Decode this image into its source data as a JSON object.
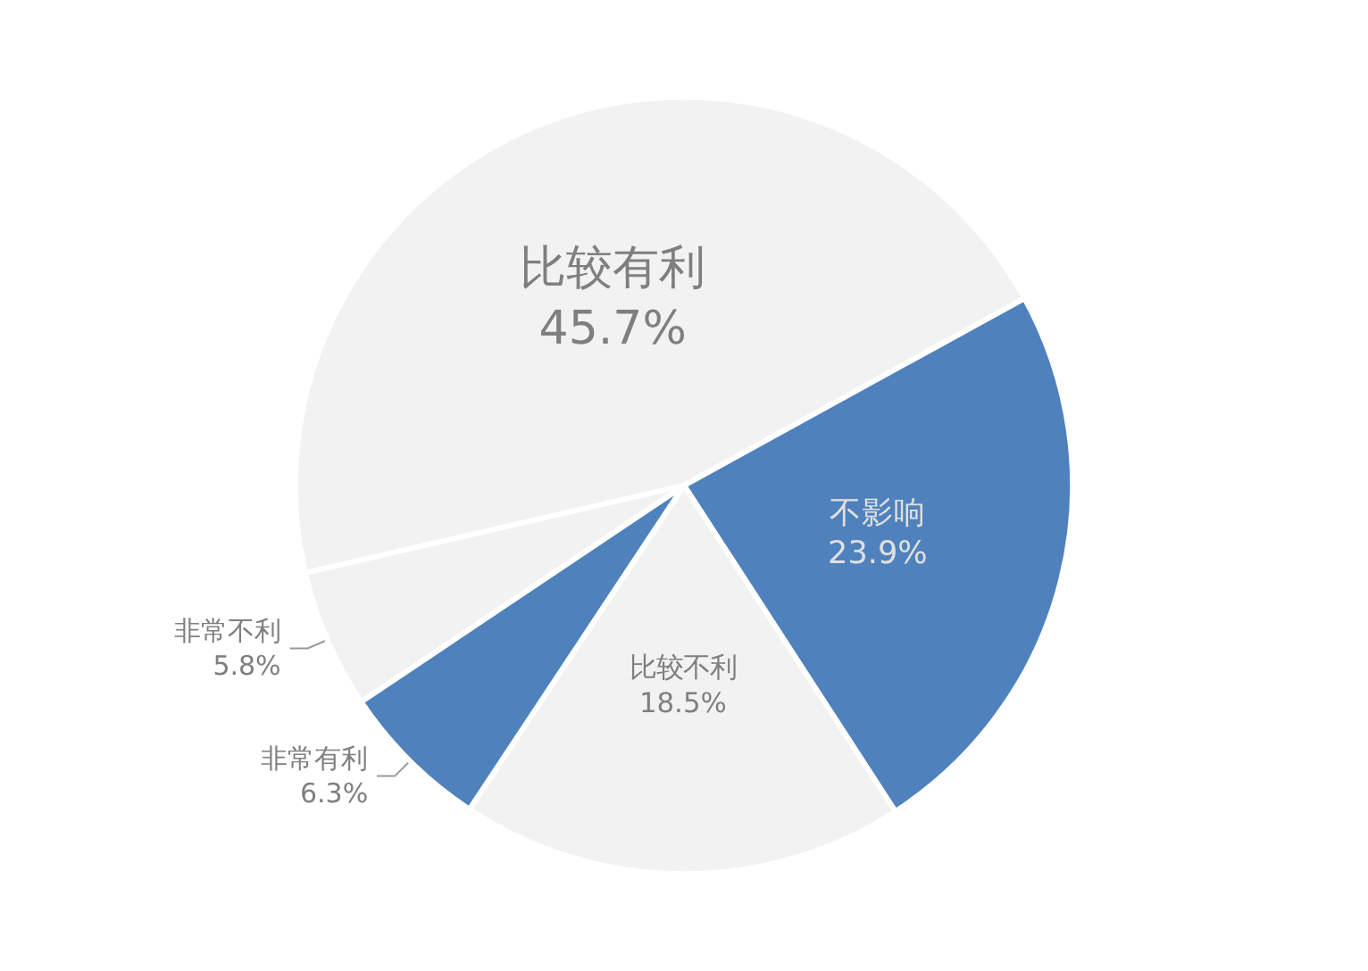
{
  "chart_data": {
    "type": "pie",
    "categories": [
      "比较有利",
      "不影响",
      "比较不利",
      "非常有利",
      "非常不利"
    ],
    "values": [
      45.7,
      23.9,
      18.5,
      6.3,
      5.8
    ],
    "value_labels": [
      "45.7%",
      "23.9%",
      "18.5%",
      "6.3%",
      "5.8%"
    ],
    "colors": [
      "#f2f2f2",
      "#4f81bd",
      "#f2f2f2",
      "#4f81bd",
      "#f2f2f2"
    ]
  }
}
